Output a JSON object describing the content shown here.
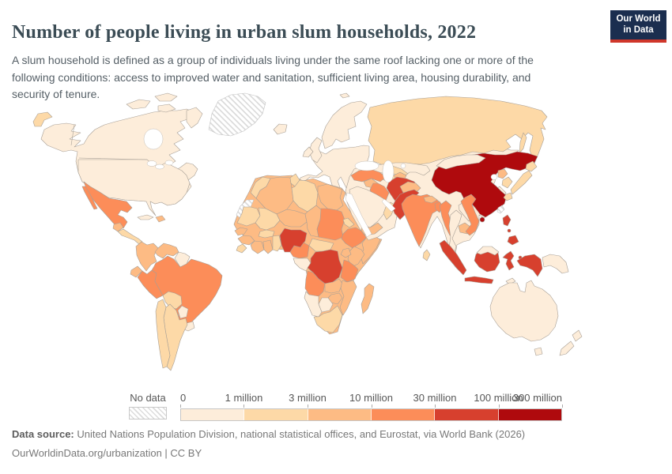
{
  "header": {
    "title": "Number of people living in urban slum households, 2022",
    "subtitle": "A slum household is defined as a group of individuals living under the same roof lacking one or more of the following conditions: access to improved water and sanitation, sufficient living area, housing durability, and security of tenure.",
    "logo": {
      "line1": "Our World",
      "line2": "in Data",
      "bg_color": "#1b2e4f",
      "accent_color": "#d0372b"
    }
  },
  "legend": {
    "no_data_label": "No data",
    "tick_labels": [
      "0",
      "1 million",
      "3 million",
      "10 million",
      "30 million",
      "100 million",
      "300 million"
    ]
  },
  "footer": {
    "source_label": "Data source:",
    "source_text": "United Nations Population Division, national statistical offices, and Eurostat, via World Bank (2026)",
    "link_line": "OurWorldinData.org/urbanization | CC BY"
  },
  "chart_data": {
    "type": "choropleth-map",
    "title": "Number of people living in urban slum households",
    "year": 2022,
    "unit": "people",
    "ocean_color": "#ffffff",
    "border_color": "#a79f96",
    "legend_bins": [
      {
        "key": "0-1M",
        "label": "0 – 1 million",
        "color": "#FDEDDA"
      },
      {
        "key": "1-3M",
        "label": "1 – 3 million",
        "color": "#FDD9A7"
      },
      {
        "key": "3-10M",
        "label": "3 – 10 million",
        "color": "#FDBB84"
      },
      {
        "key": "10-30M",
        "label": "10 – 30 million",
        "color": "#FC8D59"
      },
      {
        "key": "30-100M",
        "label": "30 – 100 million",
        "color": "#D7402E"
      },
      {
        "key": "100-300M",
        "label": "100 – 300 million",
        "color": "#AF0A0D"
      }
    ],
    "no_data_key": "no-data",
    "countries": {
      "canada": "0-1M",
      "united-states": "0-1M",
      "greenland": "no-data",
      "mexico": "10-30M",
      "guatemala": "3-10M",
      "central-america": "1-3M",
      "cuba": "0-1M",
      "haiti-dominican-republic": "3-10M",
      "colombia": "3-10M",
      "venezuela": "3-10M",
      "guyana-suriname": "0-1M",
      "ecuador": "3-10M",
      "peru": "10-30M",
      "brazil": "10-30M",
      "bolivia": "1-3M",
      "paraguay": "0-1M",
      "uruguay": "0-1M",
      "chile": "1-3M",
      "argentina": "1-3M",
      "europe": "0-1M",
      "scandinavia": "0-1M",
      "united-kingdom": "0-1M",
      "ireland": "0-1M",
      "iceland": "0-1M",
      "svalbard": "0-1M",
      "morocco": "1-3M",
      "western-sahara": "no-data",
      "algeria": "3-10M",
      "tunisia": "1-3M",
      "libya": "1-3M",
      "egypt": "3-10M",
      "mauritania": "1-3M",
      "mali": "1-3M",
      "niger": "3-10M",
      "chad": "3-10M",
      "sudan": "10-30M",
      "eritrea": "1-3M",
      "ethiopia": "10-30M",
      "somalia": "3-10M",
      "kenya": "3-10M",
      "uganda": "3-10M",
      "senegal": "3-10M",
      "guinea": "3-10M",
      "sierra-leone": "1-3M",
      "ivory-coast": "3-10M",
      "ghana": "3-10M",
      "burkina-faso": "1-3M",
      "togo-benin": "1-3M",
      "nigeria": "30-100M",
      "cameroon": "10-30M",
      "central-african-republic": "1-3M",
      "gabon-congo": "0-1M",
      "democratic-republic-of-congo": "30-100M",
      "tanzania": "10-30M",
      "angola": "10-30M",
      "zambia": "3-10M",
      "mozambique": "3-10M",
      "zimbabwe": "3-10M",
      "botswana": "0-1M",
      "namibia": "0-1M",
      "south-africa": "1-3M",
      "madagascar": "3-10M",
      "russia": "1-3M",
      "kazakhstan": "0-1M",
      "uzbekistan": "1-3M",
      "turkmenistan": "1-3M",
      "kyrgyzstan-tajikistan": "3-10M",
      "turkey": "10-30M",
      "syria": "3-10M",
      "iraq": "10-30M",
      "iran": "30-100M",
      "saudi-arabia": "0-1M",
      "yemen": "3-10M",
      "oman": "1-3M",
      "afghanistan": "3-10M",
      "pakistan": "30-100M",
      "india": "10-30M",
      "nepal": "3-10M",
      "bangladesh": "10-30M",
      "sri-lanka": "1-3M",
      "myanmar": "10-30M",
      "thailand": "0-1M",
      "laos": "0-1M",
      "cambodia": "3-10M",
      "vietnam": "10-30M",
      "china": "100-300M",
      "mongolia": "0-1M",
      "north-korea": "3-10M",
      "south-korea": "1-3M",
      "japan": "1-3M",
      "taiwan": "no-data",
      "philippines": "30-100M",
      "malaysia": "0-1M",
      "indonesia": "30-100M",
      "timor-leste": "0-1M",
      "papua-new-guinea": "0-1M",
      "australia": "0-1M",
      "new-zealand": "0-1M"
    }
  }
}
